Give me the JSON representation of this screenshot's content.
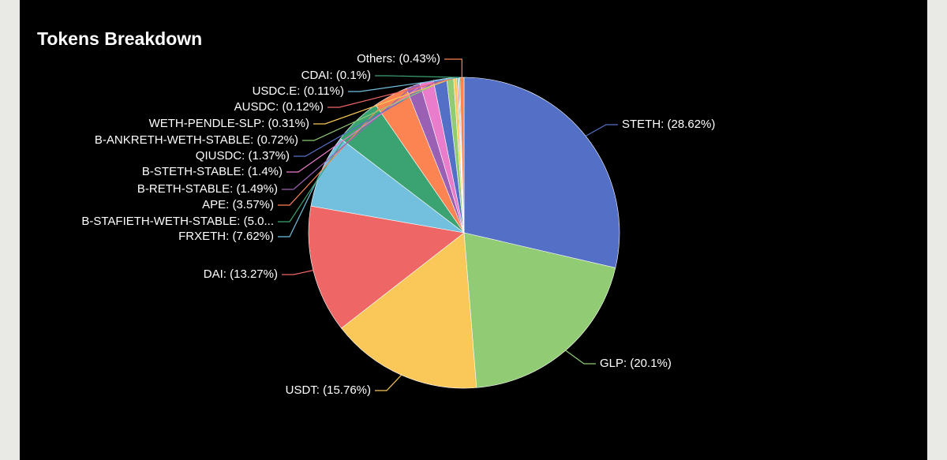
{
  "chart_data": {
    "type": "pie",
    "title": "Tokens Breakdown",
    "values": [
      28.62,
      20.1,
      15.76,
      13.27,
      7.62,
      5.01,
      3.57,
      1.49,
      1.4,
      1.37,
      0.72,
      0.31,
      0.12,
      0.11,
      0.1,
      0.43
    ],
    "value_labels": [
      "STETH: (28.62%)",
      "GLP: (20.1%)",
      "USDT: (15.76%)",
      "DAI: (13.27%)",
      "FRXETH: (7.62%)",
      "B-STAFIETH-WETH-STABLE: (5.0...",
      "APE: (3.57%)",
      "B-RETH-STABLE: (1.49%)",
      "B-STETH-STABLE: (1.4%)",
      "QIUSDC: (1.37%)",
      "B-ANKRETH-WETH-STABLE: (0.72%)",
      "WETH-PENDLE-SLP: (0.31%)",
      "AUSDC: (0.12%)",
      "USDC.E: (0.11%)",
      "CDAI: (0.1%)",
      "Others: (0.43%)"
    ],
    "colors": [
      "#5470c6",
      "#91cc75",
      "#fac858",
      "#ee6666",
      "#73c0de",
      "#3ba272",
      "#fc8452",
      "#9a60b4",
      "#ea7ccc",
      "#5470c6",
      "#91cc75",
      "#fac858",
      "#ee6666",
      "#73c0de",
      "#3ba272",
      "#fc8452"
    ]
  }
}
